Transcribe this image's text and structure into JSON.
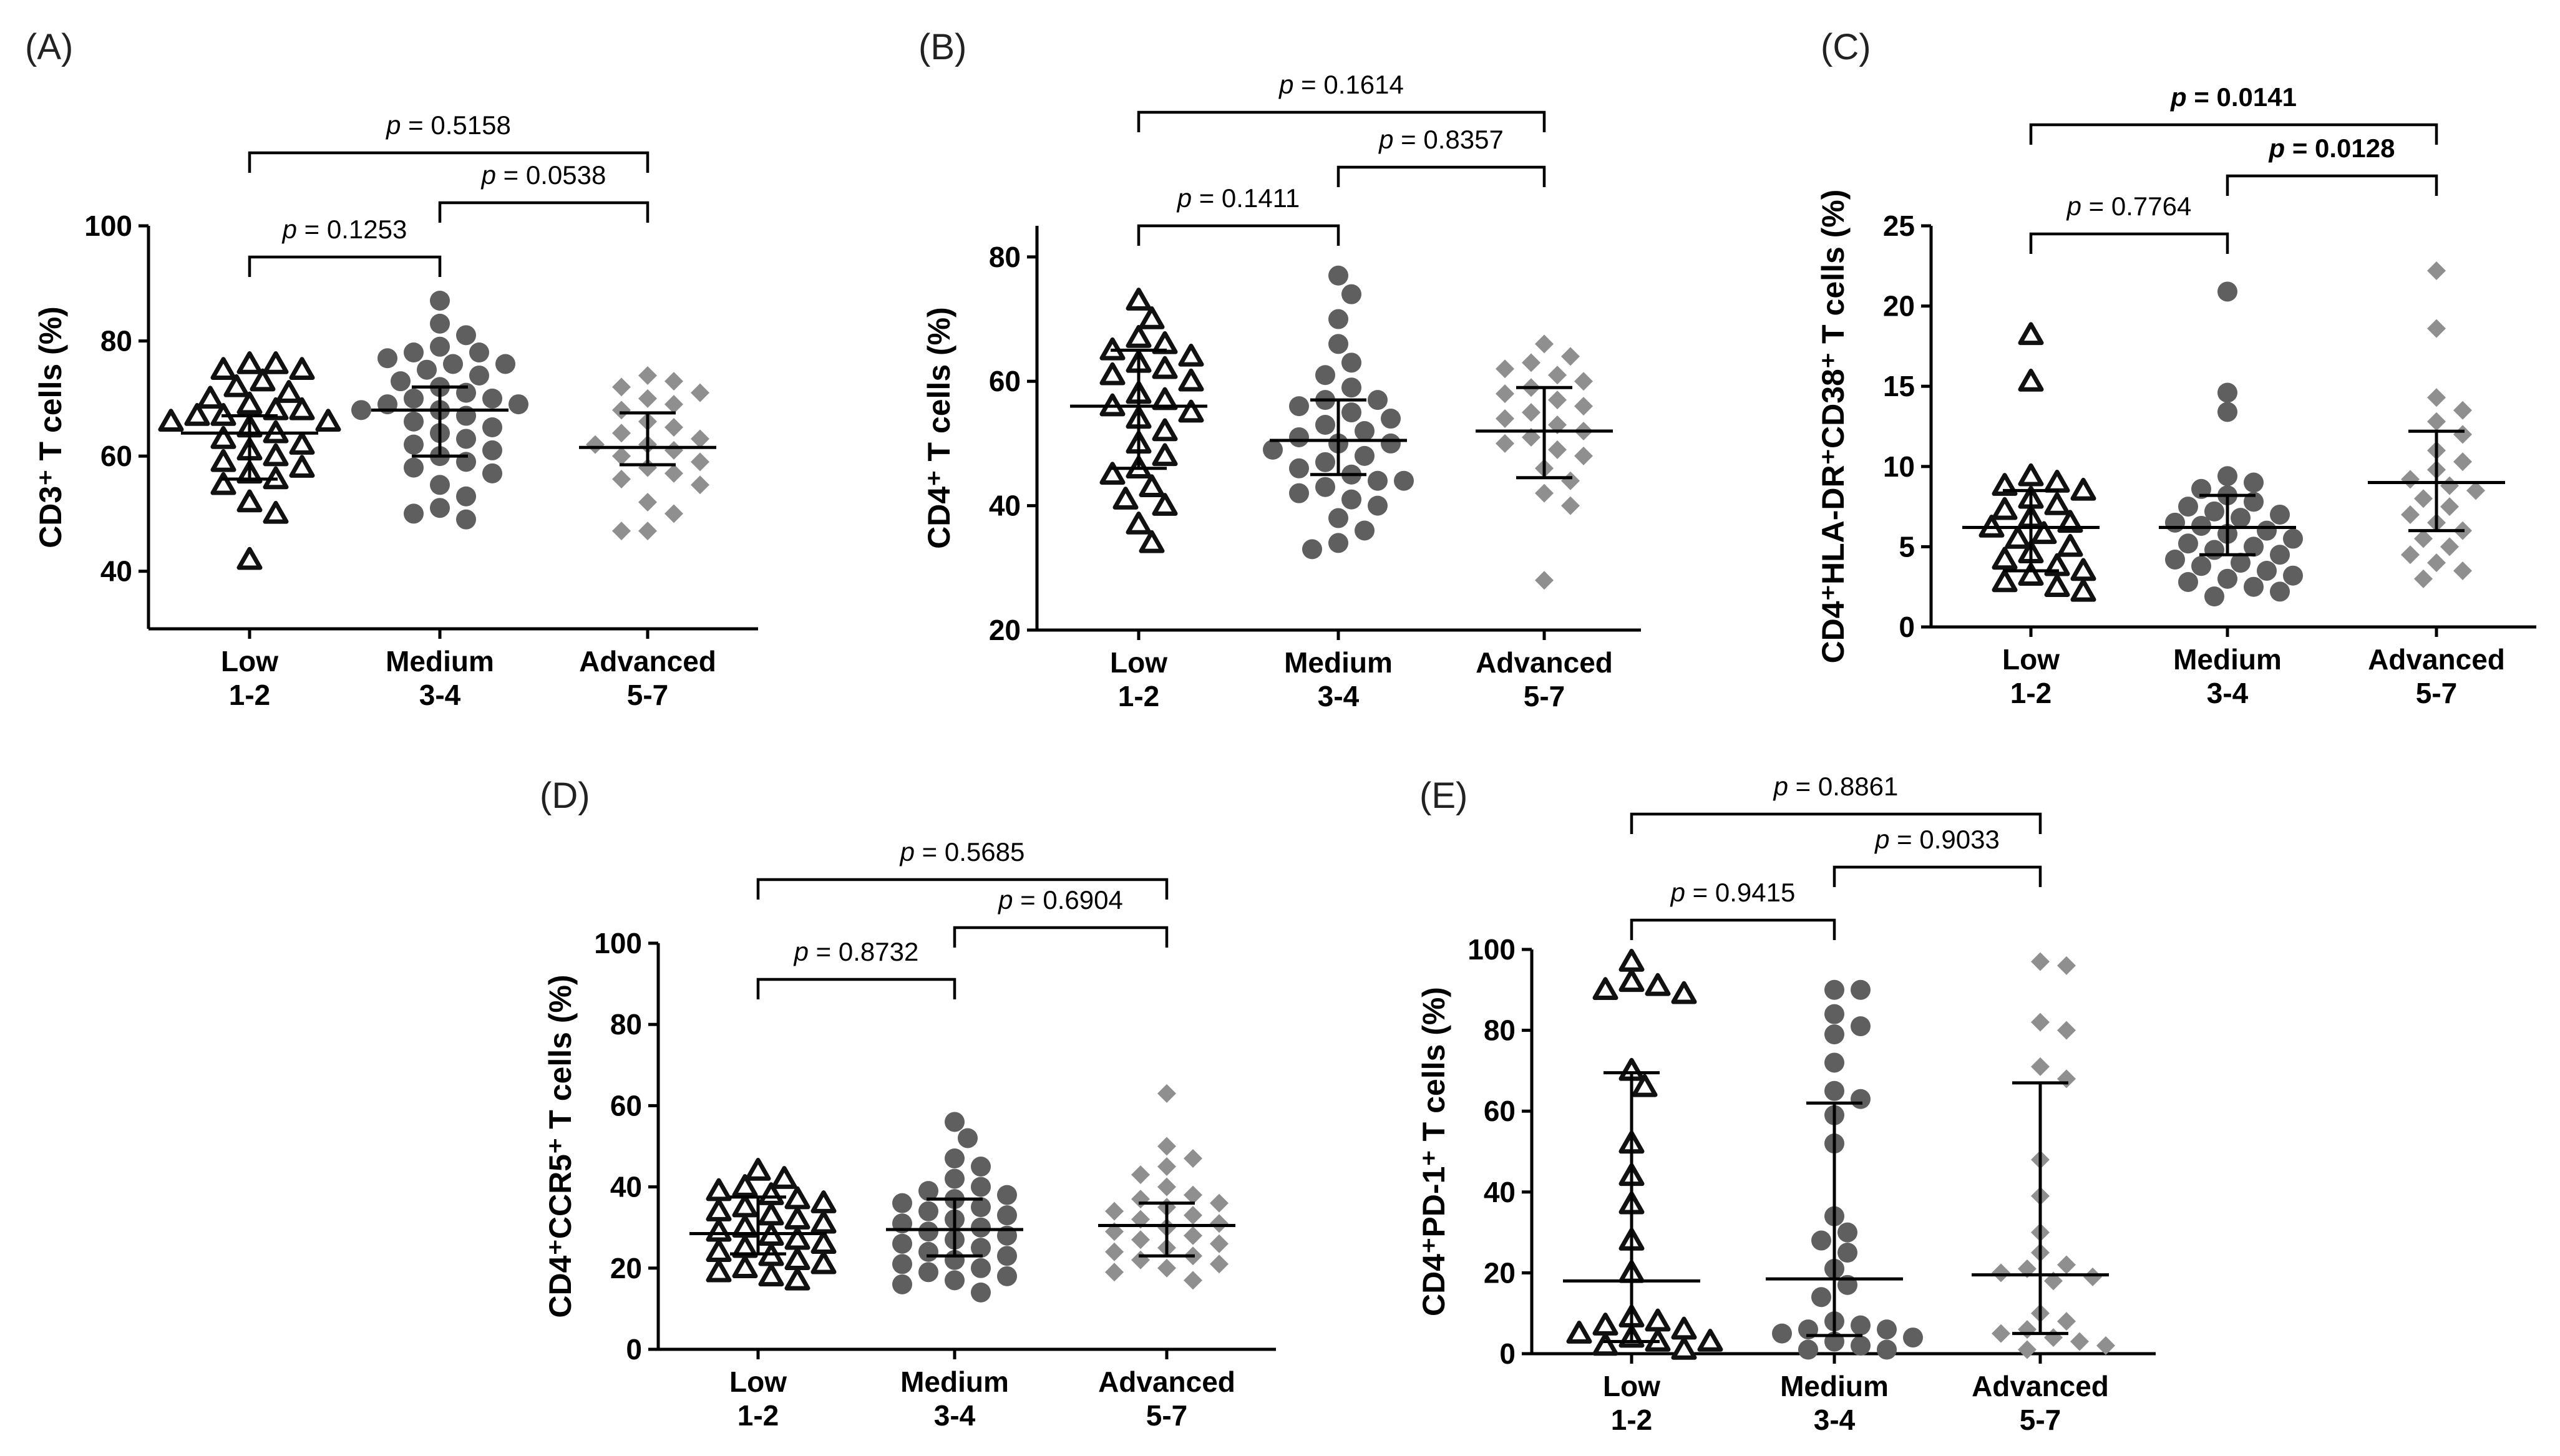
{
  "colors": {
    "low": "#111111",
    "medium": "#5f5f5f",
    "advanced": "#8f8f8f"
  },
  "chart_data": [
    {
      "id": "A",
      "panel_label": "(A)",
      "type": "scatter",
      "ylabel": "CD3⁺ T cells (%)",
      "categories": [
        {
          "line1": "Low",
          "line2": "1-2"
        },
        {
          "line1": "Medium",
          "line2": "3-4"
        },
        {
          "line1": "Advanced",
          "line2": "5-7"
        }
      ],
      "ylim": [
        30,
        100
      ],
      "yticks": [
        40,
        60,
        80,
        100
      ],
      "series": [
        {
          "marker": "triangle",
          "median": 64,
          "q1": 56,
          "q3": 67,
          "values": [
            76,
            75,
            76,
            73,
            75,
            72,
            71,
            70,
            69,
            68,
            68,
            67,
            67,
            66,
            66,
            65,
            64,
            63,
            62,
            61,
            60,
            59,
            58,
            57,
            56,
            55,
            52,
            50,
            42
          ]
        },
        {
          "marker": "circle",
          "median": 68,
          "q1": 60,
          "q3": 72,
          "values": [
            87,
            83,
            81,
            79,
            78,
            78,
            77,
            76,
            76,
            75,
            74,
            73,
            72,
            71,
            70,
            70,
            69,
            69,
            68,
            68,
            67,
            66,
            65,
            64,
            63,
            62,
            61,
            60,
            59,
            58,
            57,
            55,
            53,
            51,
            50,
            49
          ]
        },
        {
          "marker": "diamond",
          "median": 61.5,
          "q1": 58.5,
          "q3": 67.5,
          "values": [
            74,
            73,
            72,
            71,
            70,
            69,
            68,
            66,
            65,
            64,
            63,
            62,
            62,
            61,
            60,
            59,
            58,
            57,
            56,
            55,
            52,
            50,
            47,
            47
          ]
        }
      ],
      "comparisons": [
        {
          "from": 0,
          "to": 1,
          "label": "p = 0.1253",
          "bold": false,
          "level": 0
        },
        {
          "from": 1,
          "to": 2,
          "label": "p = 0.0538",
          "bold": false,
          "level": 1
        },
        {
          "from": 0,
          "to": 2,
          "label": "p = 0.5158",
          "bold": false,
          "level": 2
        }
      ]
    },
    {
      "id": "B",
      "panel_label": "(B)",
      "type": "scatter",
      "ylabel": "CD4⁺ T cells (%)",
      "categories": [
        {
          "line1": "Low",
          "line2": "1-2"
        },
        {
          "line1": "Medium",
          "line2": "3-4"
        },
        {
          "line1": "Advanced",
          "line2": "5-7"
        }
      ],
      "ylim": [
        20,
        85
      ],
      "yticks": [
        20,
        40,
        60,
        80
      ],
      "series": [
        {
          "marker": "triangle",
          "median": 56,
          "q1": 46,
          "q3": 65,
          "values": [
            73,
            70,
            67,
            66,
            65,
            64,
            63,
            62,
            61,
            60,
            58,
            57,
            56,
            55,
            54,
            52,
            50,
            48,
            46,
            45,
            43,
            41,
            40,
            37,
            34
          ]
        },
        {
          "marker": "circle",
          "median": 50.5,
          "q1": 45,
          "q3": 57,
          "values": [
            77,
            74,
            70,
            66,
            63,
            61,
            59,
            57,
            57,
            56,
            55,
            54,
            53,
            52,
            51,
            50,
            50,
            49,
            48,
            47,
            46,
            45,
            44,
            44,
            43,
            42,
            41,
            40,
            38,
            36,
            34,
            33
          ]
        },
        {
          "marker": "diamond",
          "median": 52,
          "q1": 44.5,
          "q3": 59,
          "values": [
            66,
            64,
            63,
            62,
            61,
            60,
            59,
            58,
            57,
            56,
            55,
            54,
            53,
            52,
            51,
            50,
            49,
            48,
            46,
            44,
            42,
            40,
            28
          ]
        }
      ],
      "comparisons": [
        {
          "from": 0,
          "to": 1,
          "label": "p = 0.1411",
          "bold": false,
          "level": 0
        },
        {
          "from": 1,
          "to": 2,
          "label": "p = 0.8357",
          "bold": false,
          "level": 1
        },
        {
          "from": 0,
          "to": 2,
          "label": "p = 0.1614",
          "bold": false,
          "level": 2
        }
      ]
    },
    {
      "id": "C",
      "panel_label": "(C)",
      "type": "scatter",
      "ylabel": "CD4⁺HLA-DR⁺CD38⁺ T cells (%)",
      "categories": [
        {
          "line1": "Low",
          "line2": "1-2"
        },
        {
          "line1": "Medium",
          "line2": "3-4"
        },
        {
          "line1": "Advanced",
          "line2": "5-7"
        }
      ],
      "ylim": [
        0,
        25
      ],
      "yticks": [
        0,
        5,
        10,
        15,
        20,
        25
      ],
      "series": [
        {
          "marker": "triangle",
          "median": 6.2,
          "q1": 3.5,
          "q3": 8.5,
          "values": [
            18.2,
            15.3,
            9.4,
            9.0,
            8.8,
            8.5,
            8.0,
            7.6,
            7.3,
            6.8,
            6.5,
            6.2,
            5.8,
            5.5,
            5.0,
            4.6,
            4.2,
            3.8,
            3.5,
            3.2,
            2.8,
            2.5,
            2.2
          ]
        },
        {
          "marker": "circle",
          "median": 6.2,
          "q1": 4.5,
          "q3": 8.2,
          "values": [
            20.9,
            14.6,
            13.4,
            9.4,
            9.0,
            8.6,
            8.2,
            7.8,
            7.5,
            7.2,
            7.0,
            6.8,
            6.5,
            6.3,
            6.0,
            5.8,
            5.5,
            5.2,
            5.0,
            4.8,
            4.5,
            4.2,
            4.0,
            3.8,
            3.5,
            3.2,
            3.0,
            2.8,
            2.5,
            2.2,
            1.9
          ]
        },
        {
          "marker": "diamond",
          "median": 9.0,
          "q1": 6.0,
          "q3": 12.2,
          "values": [
            22.2,
            18.6,
            14.3,
            13.5,
            12.8,
            12.0,
            11.0,
            10.3,
            9.8,
            9.2,
            8.8,
            8.5,
            8.0,
            7.5,
            7.0,
            6.5,
            6.0,
            5.5,
            5.0,
            4.5,
            4.0,
            3.5,
            3.0
          ]
        }
      ],
      "comparisons": [
        {
          "from": 0,
          "to": 1,
          "label": "p = 0.7764",
          "bold": false,
          "level": 0
        },
        {
          "from": 1,
          "to": 2,
          "label": "p = 0.0128",
          "bold": true,
          "level": 1
        },
        {
          "from": 0,
          "to": 2,
          "label": "p = 0.0141",
          "bold": true,
          "level": 2
        }
      ]
    },
    {
      "id": "D",
      "panel_label": "(D)",
      "type": "scatter",
      "ylabel": "CD4⁺CCR5⁺ T cells (%)",
      "categories": [
        {
          "line1": "Low",
          "line2": "1-2"
        },
        {
          "line1": "Medium",
          "line2": "3-4"
        },
        {
          "line1": "Advanced",
          "line2": "5-7"
        }
      ],
      "ylim": [
        0,
        100
      ],
      "yticks": [
        0,
        20,
        40,
        60,
        80,
        100
      ],
      "series": [
        {
          "marker": "triangle",
          "median": 28.5,
          "q1": 23.5,
          "q3": 37.5,
          "values": [
            44,
            42,
            40,
            39,
            38,
            37,
            36,
            35,
            34,
            33,
            32,
            31,
            30,
            29,
            28,
            27,
            26,
            25,
            24,
            23,
            22,
            21,
            20,
            19,
            18,
            17
          ]
        },
        {
          "marker": "circle",
          "median": 29.5,
          "q1": 23,
          "q3": 37,
          "values": [
            56,
            52,
            47,
            45,
            42,
            40,
            39,
            38,
            37,
            36,
            35,
            34,
            33,
            32,
            31,
            30,
            29,
            28,
            27,
            26,
            25,
            24,
            23,
            22,
            21,
            20,
            19,
            18,
            17,
            16,
            14
          ]
        },
        {
          "marker": "diamond",
          "median": 30.5,
          "q1": 23,
          "q3": 36,
          "values": [
            63,
            50,
            47,
            45,
            43,
            40,
            38,
            37,
            36,
            35,
            34,
            33,
            32,
            31,
            30,
            29,
            28,
            27,
            26,
            25,
            24,
            23,
            22,
            21,
            20,
            19,
            17
          ]
        }
      ],
      "comparisons": [
        {
          "from": 0,
          "to": 1,
          "label": "p = 0.8732",
          "bold": false,
          "level": 0
        },
        {
          "from": 1,
          "to": 2,
          "label": "p = 0.6904",
          "bold": false,
          "level": 1
        },
        {
          "from": 0,
          "to": 2,
          "label": "p = 0.5685",
          "bold": false,
          "level": 2
        }
      ]
    },
    {
      "id": "E",
      "panel_label": "(E)",
      "type": "scatter",
      "ylabel": "CD4⁺PD-1⁺ T cells (%)",
      "categories": [
        {
          "line1": "Low",
          "line2": "1-2"
        },
        {
          "line1": "Medium",
          "line2": "3-4"
        },
        {
          "line1": "Advanced",
          "line2": "5-7"
        }
      ],
      "ylim": [
        0,
        100
      ],
      "yticks": [
        0,
        20,
        40,
        60,
        80,
        100
      ],
      "series": [
        {
          "marker": "triangle",
          "median": 18,
          "q1": 3,
          "q3": 69.5,
          "values": [
            97,
            92,
            91,
            90,
            89,
            70,
            66,
            52,
            44,
            37,
            28,
            20,
            9,
            8,
            7,
            6,
            5,
            4,
            3,
            3,
            2,
            1
          ]
        },
        {
          "marker": "circle",
          "median": 18.5,
          "q1": 4.5,
          "q3": 62,
          "values": [
            90,
            90,
            84,
            81,
            79,
            72,
            65,
            63,
            59,
            52,
            34,
            30,
            28,
            25,
            21,
            17,
            14,
            8,
            7,
            6,
            6,
            5,
            4,
            3,
            2,
            1,
            1
          ]
        },
        {
          "marker": "diamond",
          "median": 19.5,
          "q1": 5,
          "q3": 67,
          "values": [
            97,
            96,
            82,
            80,
            71,
            68,
            48,
            39,
            30,
            25,
            22,
            21,
            20,
            19,
            18,
            10,
            8,
            6,
            5,
            4,
            3,
            2,
            1
          ]
        }
      ],
      "comparisons": [
        {
          "from": 0,
          "to": 1,
          "label": "p = 0.9415",
          "bold": false,
          "level": 0
        },
        {
          "from": 1,
          "to": 2,
          "label": "p = 0.9033",
          "bold": false,
          "level": 1
        },
        {
          "from": 0,
          "to": 2,
          "label": "p = 0.8861",
          "bold": false,
          "level": 2
        }
      ]
    }
  ]
}
